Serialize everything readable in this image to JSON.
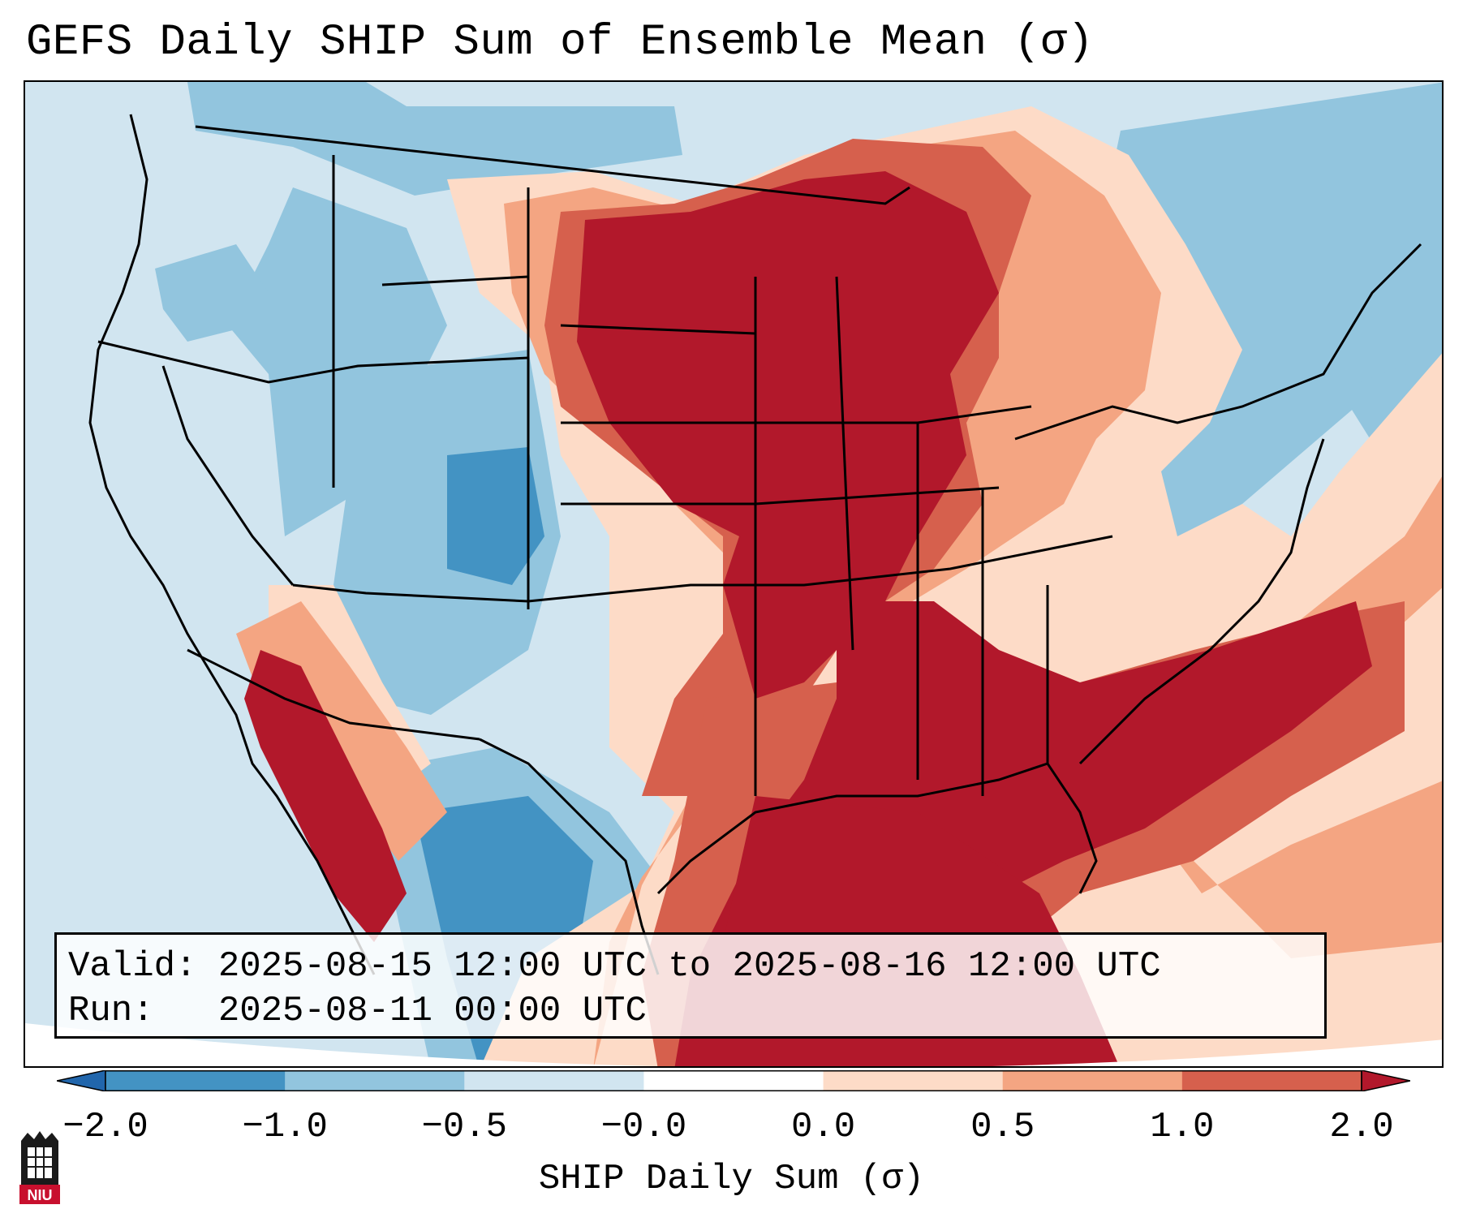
{
  "title": "GEFS Daily SHIP Sum of Ensemble Mean (σ)",
  "info": {
    "valid_label": "Valid:",
    "valid_value": "2025-08-15 12:00 UTC to 2025-08-16 12:00 UTC",
    "run_label": "Run:",
    "run_value": "2025-08-11 00:00 UTC"
  },
  "colorbar": {
    "label": "SHIP Daily Sum (σ)",
    "ticks": [
      "−2.0",
      "−1.0",
      "−0.5",
      "−0.0",
      "0.0",
      "0.5",
      "1.0",
      "2.0"
    ],
    "bins": [
      {
        "range": "< -2.0",
        "color": "#2166ac"
      },
      {
        "range": "-2.0 to -1.0",
        "color": "#4393c3"
      },
      {
        "range": "-1.0 to -0.5",
        "color": "#92c5de"
      },
      {
        "range": "-0.5 to -0.0",
        "color": "#d1e5f0"
      },
      {
        "range": "-0.0 to 0.0",
        "color": "#ffffff"
      },
      {
        "range": "0.0 to 0.5",
        "color": "#fddbc7"
      },
      {
        "range": "0.5 to 1.0",
        "color": "#f4a582"
      },
      {
        "range": "1.0 to 2.0",
        "color": "#d6604d"
      },
      {
        "range": "> 2.0",
        "color": "#b2182b"
      }
    ]
  },
  "logo": {
    "text": "NIU",
    "color": "#c8102e"
  },
  "regions": {
    "strong_positive": "Upper Midwest, Great Lakes, Mississippi Valley, Southeast, Gulf of Mexico, interior California",
    "negative": "Pacific Northwest, Rockies, Southwest, South Texas, Northeast"
  }
}
